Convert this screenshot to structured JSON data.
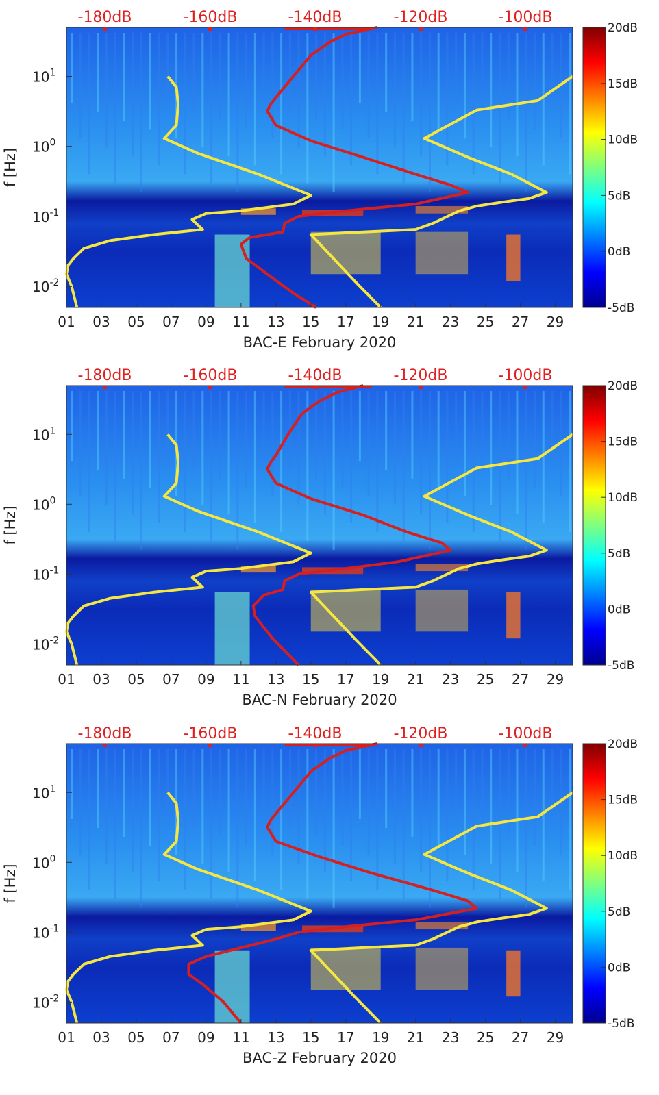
{
  "chart_data": [
    {
      "type": "heatmap",
      "title": "",
      "xlabel": "BAC-E February 2020",
      "ylabel": "f [Hz]",
      "x_ticks": [
        "01",
        "03",
        "05",
        "07",
        "09",
        "11",
        "13",
        "15",
        "17",
        "19",
        "21",
        "23",
        "25",
        "27",
        "29"
      ],
      "x_range": [
        1,
        30
      ],
      "y_scale": "log",
      "y_range": [
        0.005,
        50
      ],
      "y_ticks": [
        {
          "exp": "-2",
          "value": 0.01
        },
        {
          "exp": "-1",
          "value": 0.1
        },
        {
          "exp": "0",
          "value": 1
        },
        {
          "exp": "1",
          "value": 10
        }
      ],
      "top_axis_labels": [
        "-180dB",
        "-160dB",
        "-140dB",
        "-120dB",
        "-100dB"
      ],
      "colorbar_ticks": [
        "20dB",
        "15dB",
        "10dB",
        "5dB",
        "0dB",
        "-5dB"
      ],
      "colorbar_range": [
        -5,
        20
      ],
      "series": [
        {
          "name": "noise model (yellow)",
          "color": "#f5e642",
          "points": [
            [
              6.8,
              10
            ],
            [
              7.3,
              7
            ],
            [
              7.4,
              4
            ],
            [
              7.3,
              2
            ],
            [
              6.6,
              1.3
            ],
            [
              8.5,
              0.8
            ],
            [
              12,
              0.4
            ],
            [
              15,
              0.2
            ],
            [
              14,
              0.15
            ],
            [
              11,
              0.12
            ],
            [
              9,
              0.11
            ],
            [
              8.2,
              0.09
            ],
            [
              8.8,
              0.065
            ],
            [
              6,
              0.055
            ],
            [
              3.5,
              0.045
            ],
            [
              2,
              0.035
            ],
            [
              1.4,
              0.025
            ],
            [
              1.1,
              0.02
            ],
            [
              1,
              0.015
            ],
            [
              1.3,
              0.01
            ],
            [
              1.6,
              0.005
            ]
          ]
        },
        {
          "name": "noise model right (yellow)",
          "color": "#f5e642",
          "points": [
            [
              30,
              10
            ],
            [
              28,
              4.5
            ],
            [
              24.5,
              3.3
            ],
            [
              21.5,
              1.3
            ],
            [
              24,
              0.7
            ],
            [
              26.5,
              0.4
            ],
            [
              28.5,
              0.22
            ],
            [
              27.5,
              0.18
            ],
            [
              26,
              0.16
            ],
            [
              24.5,
              0.14
            ],
            [
              23.5,
              0.12
            ],
            [
              22,
              0.08
            ],
            [
              21,
              0.065
            ],
            [
              18,
              0.06
            ],
            [
              15,
              0.055
            ],
            [
              16,
              0.03
            ],
            [
              17.5,
              0.012
            ],
            [
              19,
              0.005
            ]
          ]
        },
        {
          "name": "spectral level (red)",
          "color": "#d42020",
          "points": [
            [
              18.8,
              50
            ],
            [
              17,
              40
            ],
            [
              16,
              30
            ],
            [
              15,
              20
            ],
            [
              14,
              10
            ],
            [
              13,
              5
            ],
            [
              12.7,
              4
            ],
            [
              12.5,
              3.2
            ],
            [
              13,
              2
            ],
            [
              15,
              1.2
            ],
            [
              18,
              0.7
            ],
            [
              21,
              0.4
            ],
            [
              23,
              0.28
            ],
            [
              24,
              0.22
            ],
            [
              21,
              0.15
            ],
            [
              17,
              0.12
            ],
            [
              14.3,
              0.1
            ],
            [
              13.5,
              0.08
            ],
            [
              13.4,
              0.06
            ],
            [
              11.5,
              0.05
            ],
            [
              11,
              0.04
            ],
            [
              11.3,
              0.025
            ],
            [
              12.5,
              0.015
            ],
            [
              14,
              0.008
            ],
            [
              15.3,
              0.005
            ]
          ]
        }
      ]
    },
    {
      "type": "heatmap",
      "title": "",
      "xlabel": "BAC-N February 2020",
      "ylabel": "f [Hz]",
      "x_ticks": [
        "01",
        "03",
        "05",
        "07",
        "09",
        "11",
        "13",
        "15",
        "17",
        "19",
        "21",
        "23",
        "25",
        "27",
        "29"
      ],
      "x_range": [
        1,
        30
      ],
      "y_scale": "log",
      "y_range": [
        0.005,
        50
      ],
      "y_ticks": [
        {
          "exp": "-2",
          "value": 0.01
        },
        {
          "exp": "-1",
          "value": 0.1
        },
        {
          "exp": "0",
          "value": 1
        },
        {
          "exp": "1",
          "value": 10
        }
      ],
      "top_axis_labels": [
        "-180dB",
        "-160dB",
        "-140dB",
        "-120dB",
        "-100dB"
      ],
      "colorbar_ticks": [
        "20dB",
        "15dB",
        "10dB",
        "5dB",
        "0dB",
        "-5dB"
      ],
      "colorbar_range": [
        -5,
        20
      ],
      "series": [
        {
          "name": "noise model (yellow)",
          "color": "#f5e642",
          "points": [
            [
              6.8,
              10
            ],
            [
              7.3,
              7
            ],
            [
              7.4,
              4
            ],
            [
              7.3,
              2
            ],
            [
              6.6,
              1.3
            ],
            [
              8.5,
              0.8
            ],
            [
              12,
              0.4
            ],
            [
              15,
              0.2
            ],
            [
              14,
              0.15
            ],
            [
              11,
              0.12
            ],
            [
              9,
              0.11
            ],
            [
              8.2,
              0.09
            ],
            [
              8.8,
              0.065
            ],
            [
              6,
              0.055
            ],
            [
              3.5,
              0.045
            ],
            [
              2,
              0.035
            ],
            [
              1.4,
              0.025
            ],
            [
              1.1,
              0.02
            ],
            [
              1,
              0.015
            ],
            [
              1.3,
              0.01
            ],
            [
              1.6,
              0.005
            ]
          ]
        },
        {
          "name": "noise model right (yellow)",
          "color": "#f5e642",
          "points": [
            [
              30,
              10
            ],
            [
              28,
              4.5
            ],
            [
              24.5,
              3.3
            ],
            [
              21.5,
              1.3
            ],
            [
              24,
              0.7
            ],
            [
              26.5,
              0.4
            ],
            [
              28.5,
              0.22
            ],
            [
              27.5,
              0.18
            ],
            [
              26,
              0.16
            ],
            [
              24.5,
              0.14
            ],
            [
              23.5,
              0.12
            ],
            [
              22,
              0.08
            ],
            [
              21,
              0.065
            ],
            [
              18,
              0.06
            ],
            [
              15,
              0.055
            ],
            [
              16,
              0.03
            ],
            [
              17.5,
              0.012
            ],
            [
              19,
              0.005
            ]
          ]
        },
        {
          "name": "spectral level (red)",
          "color": "#d42020",
          "points": [
            [
              18,
              50
            ],
            [
              16.5,
              40
            ],
            [
              15.5,
              30
            ],
            [
              14.5,
              20
            ],
            [
              13.7,
              10
            ],
            [
              13,
              5
            ],
            [
              12.7,
              4
            ],
            [
              12.5,
              3.2
            ],
            [
              13,
              2
            ],
            [
              15,
              1.2
            ],
            [
              18,
              0.7
            ],
            [
              20.5,
              0.4
            ],
            [
              22.5,
              0.28
            ],
            [
              23,
              0.22
            ],
            [
              20,
              0.15
            ],
            [
              17,
              0.12
            ],
            [
              14.3,
              0.1
            ],
            [
              13.5,
              0.08
            ],
            [
              13.4,
              0.06
            ],
            [
              12.3,
              0.05
            ],
            [
              11.7,
              0.035
            ],
            [
              11.8,
              0.025
            ],
            [
              12.8,
              0.012
            ],
            [
              14.3,
              0.005
            ]
          ]
        }
      ]
    },
    {
      "type": "heatmap",
      "title": "",
      "xlabel": "BAC-Z February 2020",
      "ylabel": "f [Hz]",
      "x_ticks": [
        "01",
        "03",
        "05",
        "07",
        "09",
        "11",
        "13",
        "15",
        "17",
        "19",
        "21",
        "23",
        "25",
        "27",
        "29"
      ],
      "x_range": [
        1,
        30
      ],
      "y_scale": "log",
      "y_range": [
        0.005,
        50
      ],
      "y_ticks": [
        {
          "exp": "-2",
          "value": 0.01
        },
        {
          "exp": "-1",
          "value": 0.1
        },
        {
          "exp": "0",
          "value": 1
        },
        {
          "exp": "1",
          "value": 10
        }
      ],
      "top_axis_labels": [
        "-180dB",
        "-160dB",
        "-140dB",
        "-120dB",
        "-100dB"
      ],
      "colorbar_ticks": [
        "20dB",
        "15dB",
        "10dB",
        "5dB",
        "0dB",
        "-5dB"
      ],
      "colorbar_range": [
        -5,
        20
      ],
      "series": [
        {
          "name": "noise model (yellow)",
          "color": "#f5e642",
          "points": [
            [
              6.8,
              10
            ],
            [
              7.3,
              7
            ],
            [
              7.4,
              4
            ],
            [
              7.3,
              2
            ],
            [
              6.6,
              1.3
            ],
            [
              8.5,
              0.8
            ],
            [
              12,
              0.4
            ],
            [
              15,
              0.2
            ],
            [
              14,
              0.15
            ],
            [
              11,
              0.12
            ],
            [
              9,
              0.11
            ],
            [
              8.2,
              0.09
            ],
            [
              8.8,
              0.065
            ],
            [
              6,
              0.055
            ],
            [
              3.5,
              0.045
            ],
            [
              2,
              0.035
            ],
            [
              1.4,
              0.025
            ],
            [
              1.1,
              0.02
            ],
            [
              1,
              0.015
            ],
            [
              1.3,
              0.01
            ],
            [
              1.6,
              0.005
            ]
          ]
        },
        {
          "name": "noise model right (yellow)",
          "color": "#f5e642",
          "points": [
            [
              30,
              10
            ],
            [
              28,
              4.5
            ],
            [
              24.5,
              3.3
            ],
            [
              21.5,
              1.3
            ],
            [
              24,
              0.7
            ],
            [
              26.5,
              0.4
            ],
            [
              28.5,
              0.22
            ],
            [
              27.5,
              0.18
            ],
            [
              26,
              0.16
            ],
            [
              24.5,
              0.14
            ],
            [
              23.5,
              0.12
            ],
            [
              22,
              0.08
            ],
            [
              21,
              0.065
            ],
            [
              18,
              0.06
            ],
            [
              15,
              0.055
            ],
            [
              16,
              0.03
            ],
            [
              17.5,
              0.012
            ],
            [
              19,
              0.005
            ]
          ]
        },
        {
          "name": "spectral level (red)",
          "color": "#d42020",
          "points": [
            [
              18.8,
              50
            ],
            [
              17,
              40
            ],
            [
              16,
              30
            ],
            [
              15,
              20
            ],
            [
              14,
              10
            ],
            [
              13,
              5
            ],
            [
              12.7,
              4
            ],
            [
              12.5,
              3.2
            ],
            [
              13,
              2
            ],
            [
              15.5,
              1.2
            ],
            [
              18.5,
              0.7
            ],
            [
              22,
              0.4
            ],
            [
              24,
              0.28
            ],
            [
              24.5,
              0.22
            ],
            [
              21,
              0.15
            ],
            [
              17,
              0.12
            ],
            [
              14.3,
              0.1
            ],
            [
              13,
              0.08
            ],
            [
              11,
              0.06
            ],
            [
              9,
              0.045
            ],
            [
              8,
              0.035
            ],
            [
              8,
              0.025
            ],
            [
              8.8,
              0.018
            ],
            [
              10,
              0.01
            ],
            [
              11,
              0.005
            ]
          ]
        }
      ]
    }
  ]
}
